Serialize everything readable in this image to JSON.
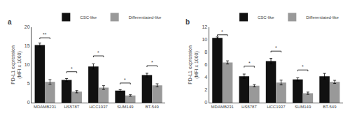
{
  "chart_data": [
    {
      "type": "bar",
      "title": "a",
      "categories": [
        "MDAMB231",
        "HS578T",
        "HCC1937",
        "SUM149",
        "BT-549"
      ],
      "series": [
        {
          "name": "CSC-like",
          "color": "#111111",
          "values": [
            15.3,
            6.0,
            9.6,
            3.2,
            7.3
          ],
          "errors": [
            0.5,
            0.4,
            0.7,
            0.25,
            0.5
          ]
        },
        {
          "name": "Differentiated-like",
          "color": "#999999",
          "values": [
            5.5,
            2.9,
            4.0,
            1.9,
            4.6
          ],
          "errors": [
            0.6,
            0.3,
            0.5,
            0.2,
            0.4
          ]
        }
      ],
      "ylabel": "PD-L1 expression\n(MFI x 1000)",
      "ylim": [
        0,
        20
      ],
      "yticks": [
        0,
        5,
        10,
        15,
        20
      ],
      "annotations": [
        {
          "category": "MDAMB231",
          "y": 17.2,
          "text": "**"
        },
        {
          "category": "HS578T",
          "y": 8.2,
          "text": "*"
        },
        {
          "category": "HCC1937",
          "y": 12.4,
          "text": "*"
        },
        {
          "category": "SUM149",
          "y": 5.2,
          "text": "*"
        },
        {
          "category": "BT-549",
          "y": 9.8,
          "text": "*"
        }
      ],
      "legend": "upper right",
      "grid": false
    },
    {
      "type": "bar",
      "title": "b",
      "categories": [
        "MDAMB231",
        "HS578T",
        "HCC1937",
        "SUM149",
        "BT-549"
      ],
      "series": [
        {
          "name": "CSC-like",
          "color": "#111111",
          "values": [
            10.3,
            4.2,
            6.6,
            3.7,
            4.2
          ],
          "errors": [
            0.15,
            0.35,
            0.45,
            0.25,
            0.45
          ]
        },
        {
          "name": "Differentiated-like",
          "color": "#999999",
          "values": [
            6.4,
            2.7,
            3.2,
            1.5,
            3.3
          ],
          "errors": [
            0.25,
            0.18,
            0.38,
            0.18,
            0.25
          ]
        }
      ],
      "ylabel": "PD-L1 expression\n(MFI x 1000)",
      "ylim": [
        0,
        12
      ],
      "yticks": [
        0,
        2,
        4,
        6,
        8,
        10,
        12
      ],
      "annotations": [
        {
          "category": "MDAMB231",
          "y": 10.8,
          "text": "*"
        },
        {
          "category": "HS578T",
          "y": 5.8,
          "text": "*"
        },
        {
          "category": "HCC1937",
          "y": 8.2,
          "text": "*"
        },
        {
          "category": "SUM149",
          "y": 5.2,
          "text": "*"
        }
      ],
      "legend": "upper right",
      "grid": false
    }
  ]
}
